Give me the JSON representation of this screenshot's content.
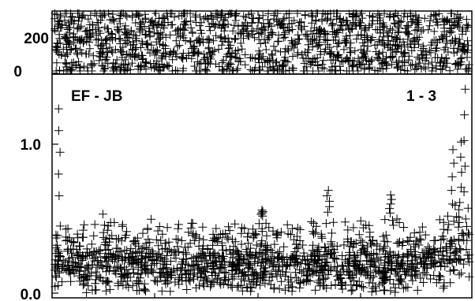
{
  "chart_data": [
    {
      "type": "scatter",
      "panel": "top",
      "title": "",
      "xlabel": "",
      "ylabel": "",
      "ylim": [
        0,
        300
      ],
      "yticks": [
        0,
        200
      ],
      "ytick_labels": [
        "0",
        "200"
      ],
      "marker": "+",
      "color": "#000000",
      "point_count": 1400,
      "value_range": [
        0,
        300
      ],
      "distribution": "uniform"
    },
    {
      "type": "scatter",
      "panel": "bottom",
      "title": "",
      "xlabel": "",
      "ylabel": "",
      "ylim": [
        0.0,
        1.45
      ],
      "yticks": [
        0.0,
        1.0
      ],
      "ytick_labels": [
        "0.0",
        "1.0"
      ],
      "marker": "+",
      "color": "#000000",
      "annotations": [
        "EF - JB",
        "1 - 3"
      ],
      "point_count": 1400,
      "baseline_range": [
        0.0,
        0.5
      ],
      "peaks": [
        {
          "x": 0.01,
          "y": 1.22
        },
        {
          "x": 0.5,
          "y": 0.55
        },
        {
          "x": 0.66,
          "y": 0.68
        },
        {
          "x": 0.81,
          "y": 0.65
        },
        {
          "x": 0.96,
          "y": 0.95
        },
        {
          "x": 0.98,
          "y": 1.0
        },
        {
          "x": 0.99,
          "y": 1.35
        }
      ]
    }
  ]
}
